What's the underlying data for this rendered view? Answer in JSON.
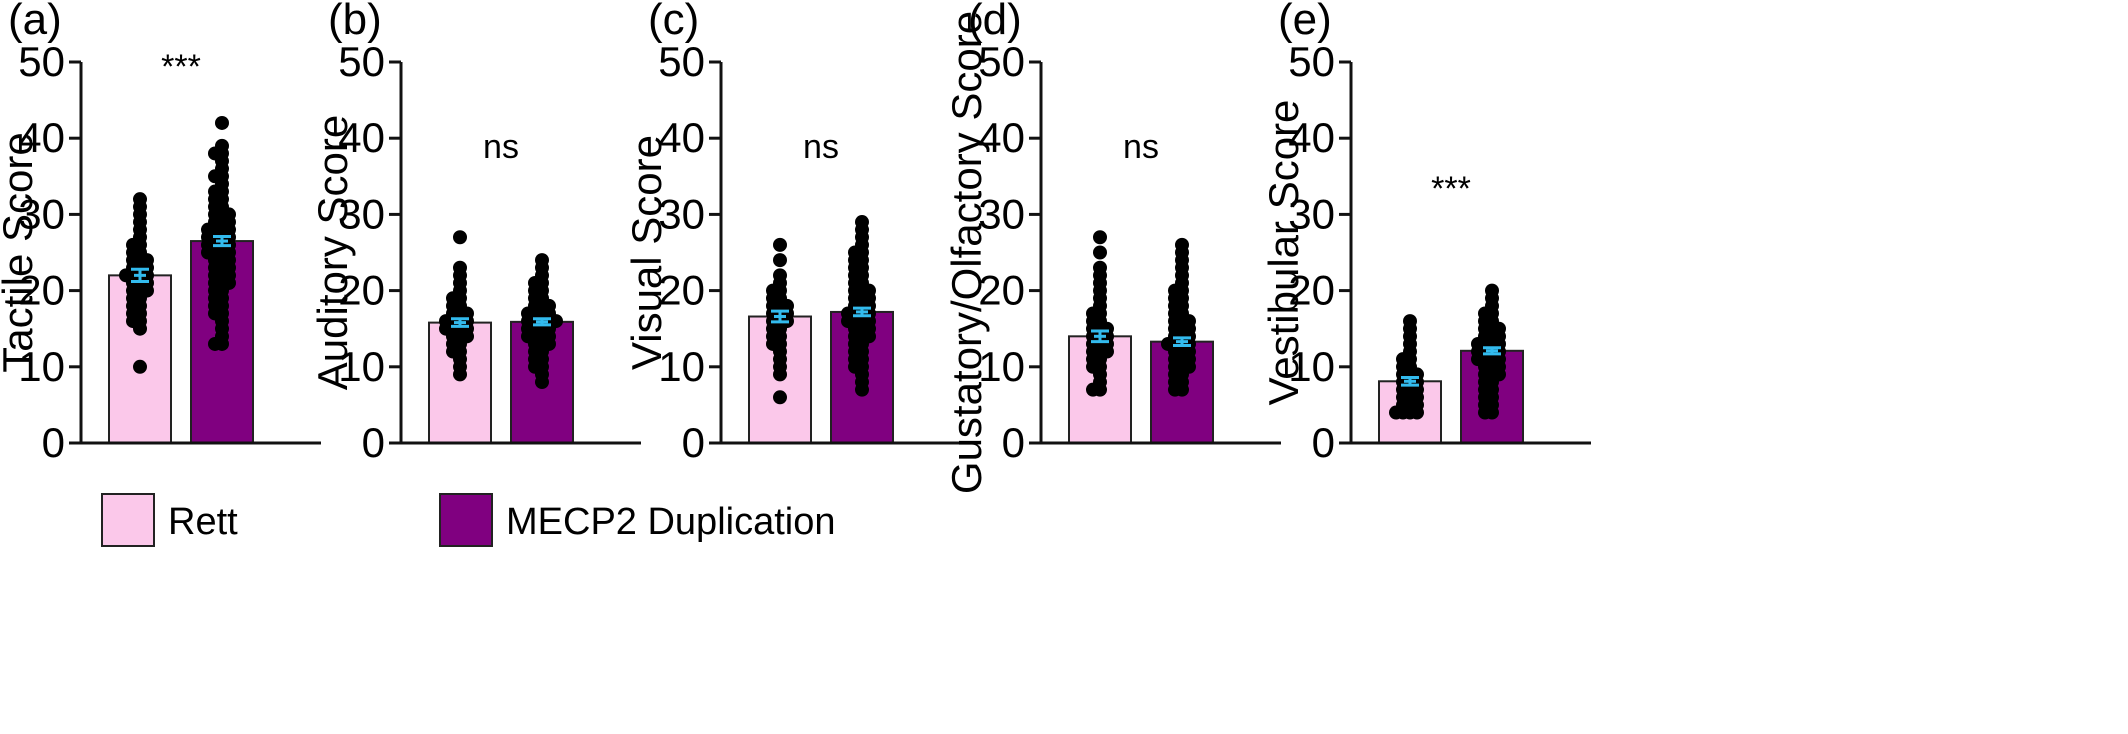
{
  "chart_data": [
    {
      "type": "bar",
      "panel": "(a)",
      "ylabel": "Tactile Score",
      "ylim": [
        0,
        50
      ],
      "yticks": [
        0,
        10,
        20,
        30,
        40,
        50
      ],
      "categories": [
        "Rett",
        "MECP2 Duplication"
      ],
      "values": [
        22.0,
        26.5
      ],
      "sem": [
        0.8,
        0.6
      ],
      "significance": "***",
      "points": [
        [
          32,
          31,
          30,
          29,
          28,
          27,
          26,
          26,
          25,
          25,
          24,
          24,
          24,
          23,
          23,
          23,
          22,
          22,
          22,
          22,
          21,
          21,
          21,
          20,
          20,
          20,
          19,
          19,
          18,
          18,
          17,
          17,
          16,
          16,
          15,
          10
        ],
        [
          42,
          39,
          38,
          38,
          37,
          36,
          35,
          35,
          34,
          33,
          33,
          32,
          32,
          31,
          31,
          30,
          30,
          30,
          29,
          29,
          29,
          28,
          28,
          28,
          28,
          27,
          27,
          27,
          27,
          26,
          26,
          26,
          26,
          25,
          25,
          25,
          25,
          24,
          24,
          24,
          23,
          23,
          23,
          22,
          22,
          22,
          21,
          21,
          21,
          20,
          20,
          19,
          19,
          18,
          18,
          17,
          17,
          16,
          15,
          14,
          13,
          13
        ]
      ]
    },
    {
      "type": "bar",
      "panel": "(b)",
      "ylabel": "Auditory Score",
      "ylim": [
        0,
        50
      ],
      "yticks": [
        0,
        10,
        20,
        30,
        40,
        50
      ],
      "categories": [
        "Rett",
        "MECP2 Duplication"
      ],
      "values": [
        15.8,
        15.9
      ],
      "sem": [
        0.5,
        0.4
      ],
      "significance": "ns",
      "points": [
        [
          27,
          23,
          22,
          21,
          20,
          19,
          19,
          18,
          18,
          17,
          17,
          17,
          16,
          16,
          16,
          16,
          15,
          15,
          15,
          15,
          14,
          14,
          14,
          13,
          13,
          12,
          12,
          11,
          10,
          9
        ],
        [
          24,
          23,
          22,
          21,
          21,
          20,
          20,
          19,
          19,
          18,
          18,
          18,
          17,
          17,
          17,
          17,
          16,
          16,
          16,
          16,
          16,
          15,
          15,
          15,
          15,
          14,
          14,
          14,
          14,
          13,
          13,
          13,
          12,
          12,
          11,
          11,
          10,
          10,
          9,
          8
        ]
      ]
    },
    {
      "type": "bar",
      "panel": "(c)",
      "ylabel": "Visual Score",
      "ylim": [
        0,
        50
      ],
      "yticks": [
        0,
        10,
        20,
        30,
        40,
        50
      ],
      "categories": [
        "Rett",
        "MECP2 Duplication"
      ],
      "values": [
        16.6,
        17.2
      ],
      "sem": [
        0.7,
        0.5
      ],
      "significance": "ns",
      "points": [
        [
          26,
          24,
          22,
          21,
          20,
          20,
          19,
          19,
          18,
          18,
          18,
          17,
          17,
          17,
          16,
          16,
          16,
          15,
          15,
          14,
          14,
          13,
          13,
          12,
          11,
          10,
          9,
          6
        ],
        [
          29,
          28,
          27,
          26,
          25,
          25,
          24,
          24,
          23,
          23,
          22,
          22,
          21,
          21,
          20,
          20,
          20,
          19,
          19,
          19,
          18,
          18,
          18,
          17,
          17,
          17,
          17,
          16,
          16,
          16,
          16,
          15,
          15,
          15,
          14,
          14,
          14,
          13,
          13,
          12,
          12,
          11,
          11,
          10,
          10,
          9,
          8,
          7
        ]
      ]
    },
    {
      "type": "bar",
      "panel": "(d)",
      "ylabel": "Gustatory/Olfactory Score",
      "ylim": [
        0,
        50
      ],
      "yticks": [
        0,
        10,
        20,
        30,
        40,
        50
      ],
      "categories": [
        "Rett",
        "MECP2 Duplication"
      ],
      "values": [
        14.0,
        13.3
      ],
      "sem": [
        0.7,
        0.5
      ],
      "significance": "ns",
      "points": [
        [
          27,
          25,
          23,
          22,
          21,
          20,
          19,
          18,
          17,
          17,
          16,
          16,
          15,
          15,
          15,
          14,
          14,
          14,
          13,
          13,
          13,
          12,
          12,
          12,
          11,
          11,
          10,
          10,
          9,
          8,
          7,
          7
        ],
        [
          26,
          25,
          24,
          23,
          22,
          21,
          20,
          20,
          19,
          19,
          18,
          18,
          17,
          17,
          16,
          16,
          16,
          15,
          15,
          15,
          14,
          14,
          14,
          13,
          13,
          13,
          13,
          12,
          12,
          12,
          11,
          11,
          11,
          10,
          10,
          10,
          9,
          9,
          8,
          8,
          7,
          7
        ]
      ]
    },
    {
      "type": "bar",
      "panel": "(e)",
      "ylabel": "Vestibular Score",
      "ylim": [
        0,
        50
      ],
      "yticks": [
        0,
        10,
        20,
        30,
        40,
        50
      ],
      "categories": [
        "Rett",
        "MECP2 Duplication"
      ],
      "values": [
        8.1,
        12.1
      ],
      "sem": [
        0.5,
        0.4
      ],
      "significance": "***",
      "points": [
        [
          16,
          15,
          14,
          13,
          12,
          11,
          11,
          10,
          10,
          9,
          9,
          9,
          8,
          8,
          8,
          7,
          7,
          7,
          6,
          6,
          6,
          5,
          5,
          5,
          4,
          4,
          4,
          4
        ],
        [
          20,
          19,
          18,
          17,
          17,
          16,
          16,
          15,
          15,
          15,
          14,
          14,
          14,
          13,
          13,
          13,
          13,
          12,
          12,
          12,
          12,
          11,
          11,
          11,
          11,
          10,
          10,
          10,
          9,
          9,
          9,
          8,
          8,
          7,
          7,
          6,
          6,
          5,
          5,
          4,
          4
        ]
      ]
    }
  ],
  "legend": {
    "items": [
      {
        "label": "Rett",
        "color": "#FBC8EA"
      },
      {
        "label": "MECP2 Duplication",
        "color": "#800080"
      }
    ]
  },
  "colors": {
    "rett": "#FBC8EA",
    "mecp2": "#800080",
    "error_bar": "#33BBEE",
    "points": "#000000"
  }
}
